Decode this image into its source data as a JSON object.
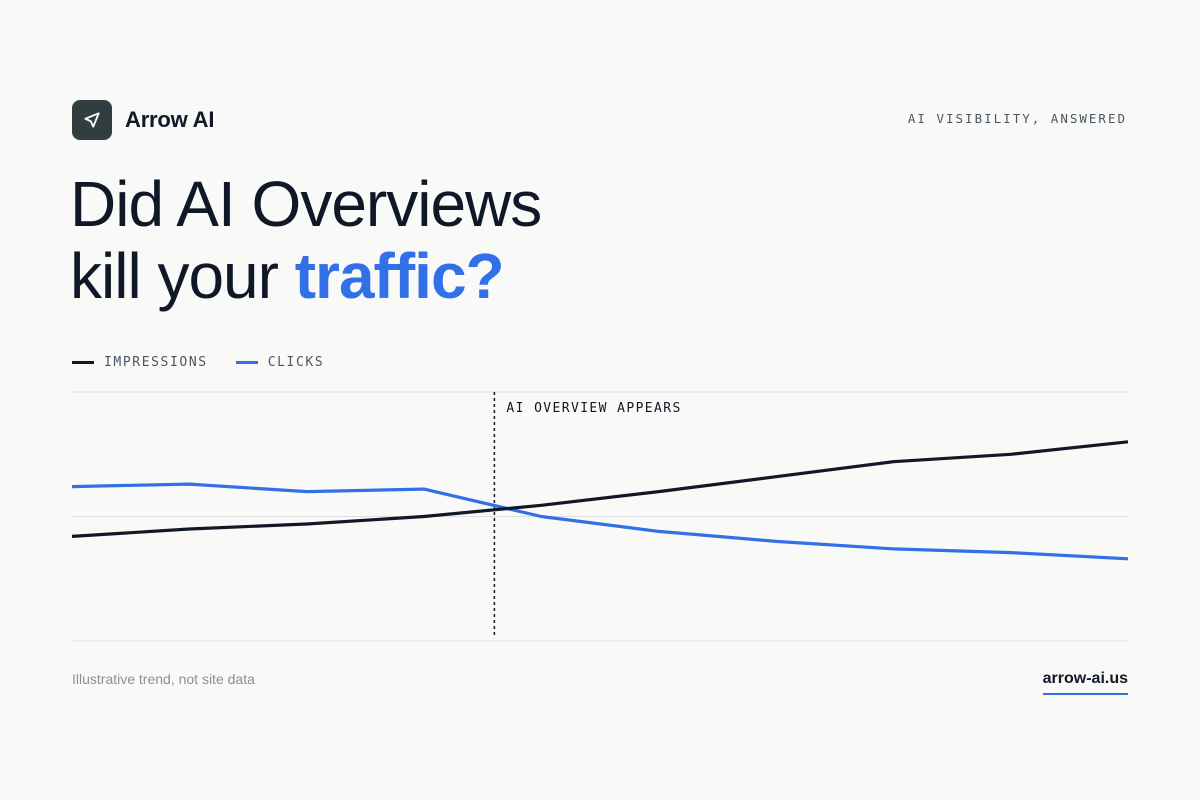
{
  "brand": {
    "name": "Arrow AI",
    "logo_icon": "paper-plane-icon"
  },
  "tagline": "AI VISIBILITY, ANSWERED",
  "headline": {
    "line1": "Did AI Overviews",
    "line2_prefix": "kill your ",
    "line2_accent": "traffic?"
  },
  "colors": {
    "background": "#f9f9f7",
    "text": "#111827",
    "accent": "#3170e6",
    "impressions": "#111827",
    "clicks": "#3170e6"
  },
  "chart_data": {
    "type": "line",
    "x": [
      0,
      1,
      2,
      3,
      4,
      5,
      6,
      7,
      8,
      9
    ],
    "series": [
      {
        "name": "IMPRESSIONS",
        "values": [
          0.84,
          0.9,
          0.94,
          1.0,
          1.09,
          1.2,
          1.32,
          1.44,
          1.5,
          1.6
        ]
      },
      {
        "name": "CLICKS",
        "values": [
          1.24,
          1.26,
          1.2,
          1.22,
          1.0,
          0.88,
          0.8,
          0.74,
          0.71,
          0.66
        ]
      }
    ],
    "ylim": [
      0,
      2
    ],
    "xlim": [
      0,
      9
    ],
    "grid": true,
    "legend_position": "top-left",
    "event_x": 3.6,
    "event_label": "AI OVERVIEW APPEARS"
  },
  "footer": {
    "note": "Illustrative trend, not site data",
    "link": "arrow-ai.us"
  }
}
